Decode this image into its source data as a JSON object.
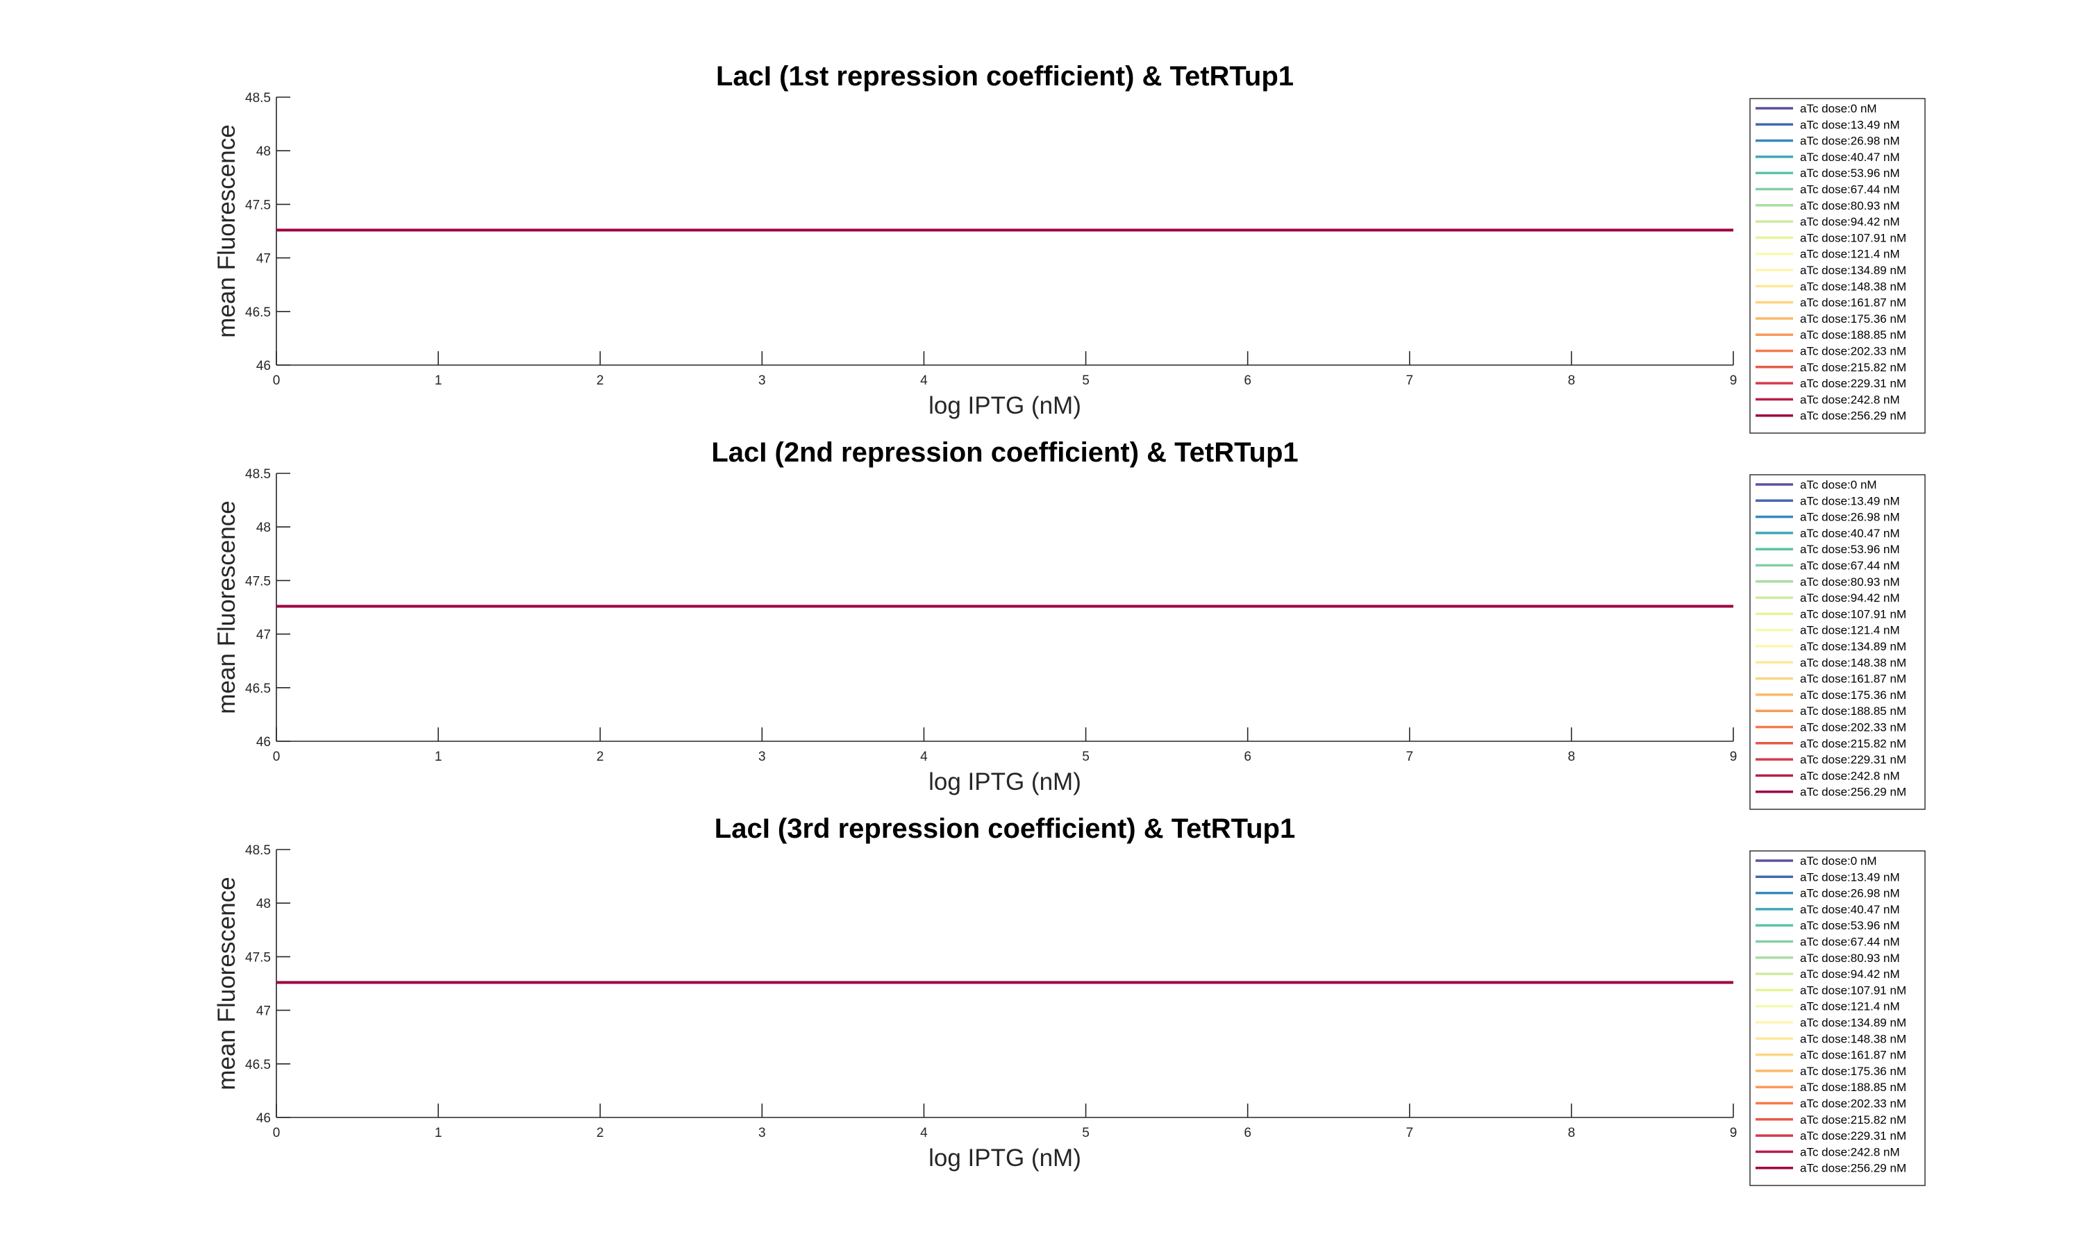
{
  "chart_data": [
    {
      "type": "line",
      "title": "LacI (1st repression coefficient) & TetRTup1",
      "xlabel": "log IPTG (nM)",
      "ylabel": "mean Fluorescence",
      "xlim": [
        0,
        9
      ],
      "ylim": [
        46,
        48.5
      ],
      "xticks": [
        "0",
        "1",
        "2",
        "3",
        "4",
        "5",
        "6",
        "7",
        "8",
        "9"
      ],
      "yticks": [
        "46",
        "46.5",
        "47",
        "47.5",
        "48",
        "48.5"
      ],
      "grid": false,
      "legend_position": "outside-right",
      "x": [
        0,
        9
      ],
      "series": [
        {
          "name": "aTc dose:0 nM",
          "values": [
            47.26,
            47.26
          ]
        },
        {
          "name": "aTc dose:13.49 nM",
          "values": [
            47.26,
            47.26
          ]
        },
        {
          "name": "aTc dose:26.98 nM",
          "values": [
            47.26,
            47.26
          ]
        },
        {
          "name": "aTc dose:40.47 nM",
          "values": [
            47.26,
            47.26
          ]
        },
        {
          "name": "aTc dose:53.96 nM",
          "values": [
            47.26,
            47.26
          ]
        },
        {
          "name": "aTc dose:67.44 nM",
          "values": [
            47.26,
            47.26
          ]
        },
        {
          "name": "aTc dose:80.93 nM",
          "values": [
            47.26,
            47.26
          ]
        },
        {
          "name": "aTc dose:94.42 nM",
          "values": [
            47.26,
            47.26
          ]
        },
        {
          "name": "aTc dose:107.91 nM",
          "values": [
            47.26,
            47.26
          ]
        },
        {
          "name": "aTc dose:121.4 nM",
          "values": [
            47.26,
            47.26
          ]
        },
        {
          "name": "aTc dose:134.89 nM",
          "values": [
            47.26,
            47.26
          ]
        },
        {
          "name": "aTc dose:148.38 nM",
          "values": [
            47.26,
            47.26
          ]
        },
        {
          "name": "aTc dose:161.87 nM",
          "values": [
            47.26,
            47.26
          ]
        },
        {
          "name": "aTc dose:175.36 nM",
          "values": [
            47.26,
            47.26
          ]
        },
        {
          "name": "aTc dose:188.85 nM",
          "values": [
            47.26,
            47.26
          ]
        },
        {
          "name": "aTc dose:202.33 nM",
          "values": [
            47.26,
            47.26
          ]
        },
        {
          "name": "aTc dose:215.82 nM",
          "values": [
            47.26,
            47.26
          ]
        },
        {
          "name": "aTc dose:229.31 nM",
          "values": [
            47.26,
            47.26
          ]
        },
        {
          "name": "aTc dose:242.8 nM",
          "values": [
            47.26,
            47.26
          ]
        },
        {
          "name": "aTc dose:256.29 nM",
          "values": [
            47.26,
            47.26
          ]
        }
      ]
    },
    {
      "type": "line",
      "title": "LacI (2nd repression coefficient) & TetRTup1",
      "xlabel": "log IPTG (nM)",
      "ylabel": "mean Fluorescence",
      "xlim": [
        0,
        9
      ],
      "ylim": [
        46,
        48.5
      ],
      "xticks": [
        "0",
        "1",
        "2",
        "3",
        "4",
        "5",
        "6",
        "7",
        "8",
        "9"
      ],
      "yticks": [
        "46",
        "46.5",
        "47",
        "47.5",
        "48",
        "48.5"
      ],
      "grid": false,
      "legend_position": "outside-right",
      "x": [
        0,
        9
      ],
      "series": [
        {
          "name": "aTc dose:0 nM",
          "values": [
            47.26,
            47.26
          ]
        },
        {
          "name": "aTc dose:13.49 nM",
          "values": [
            47.26,
            47.26
          ]
        },
        {
          "name": "aTc dose:26.98 nM",
          "values": [
            47.26,
            47.26
          ]
        },
        {
          "name": "aTc dose:40.47 nM",
          "values": [
            47.26,
            47.26
          ]
        },
        {
          "name": "aTc dose:53.96 nM",
          "values": [
            47.26,
            47.26
          ]
        },
        {
          "name": "aTc dose:67.44 nM",
          "values": [
            47.26,
            47.26
          ]
        },
        {
          "name": "aTc dose:80.93 nM",
          "values": [
            47.26,
            47.26
          ]
        },
        {
          "name": "aTc dose:94.42 nM",
          "values": [
            47.26,
            47.26
          ]
        },
        {
          "name": "aTc dose:107.91 nM",
          "values": [
            47.26,
            47.26
          ]
        },
        {
          "name": "aTc dose:121.4 nM",
          "values": [
            47.26,
            47.26
          ]
        },
        {
          "name": "aTc dose:134.89 nM",
          "values": [
            47.26,
            47.26
          ]
        },
        {
          "name": "aTc dose:148.38 nM",
          "values": [
            47.26,
            47.26
          ]
        },
        {
          "name": "aTc dose:161.87 nM",
          "values": [
            47.26,
            47.26
          ]
        },
        {
          "name": "aTc dose:175.36 nM",
          "values": [
            47.26,
            47.26
          ]
        },
        {
          "name": "aTc dose:188.85 nM",
          "values": [
            47.26,
            47.26
          ]
        },
        {
          "name": "aTc dose:202.33 nM",
          "values": [
            47.26,
            47.26
          ]
        },
        {
          "name": "aTc dose:215.82 nM",
          "values": [
            47.26,
            47.26
          ]
        },
        {
          "name": "aTc dose:229.31 nM",
          "values": [
            47.26,
            47.26
          ]
        },
        {
          "name": "aTc dose:242.8 nM",
          "values": [
            47.26,
            47.26
          ]
        },
        {
          "name": "aTc dose:256.29 nM",
          "values": [
            47.26,
            47.26
          ]
        }
      ]
    },
    {
      "type": "line",
      "title": "LacI (3rd repression coefficient) & TetRTup1",
      "xlabel": "log IPTG (nM)",
      "ylabel": "mean Fluorescence",
      "xlim": [
        0,
        9
      ],
      "ylim": [
        46,
        48.5
      ],
      "xticks": [
        "0",
        "1",
        "2",
        "3",
        "4",
        "5",
        "6",
        "7",
        "8",
        "9"
      ],
      "yticks": [
        "46",
        "46.5",
        "47",
        "47.5",
        "48",
        "48.5"
      ],
      "grid": false,
      "legend_position": "outside-right",
      "x": [
        0,
        9
      ],
      "series": [
        {
          "name": "aTc dose:0 nM",
          "values": [
            47.26,
            47.26
          ]
        },
        {
          "name": "aTc dose:13.49 nM",
          "values": [
            47.26,
            47.26
          ]
        },
        {
          "name": "aTc dose:26.98 nM",
          "values": [
            47.26,
            47.26
          ]
        },
        {
          "name": "aTc dose:40.47 nM",
          "values": [
            47.26,
            47.26
          ]
        },
        {
          "name": "aTc dose:53.96 nM",
          "values": [
            47.26,
            47.26
          ]
        },
        {
          "name": "aTc dose:67.44 nM",
          "values": [
            47.26,
            47.26
          ]
        },
        {
          "name": "aTc dose:80.93 nM",
          "values": [
            47.26,
            47.26
          ]
        },
        {
          "name": "aTc dose:94.42 nM",
          "values": [
            47.26,
            47.26
          ]
        },
        {
          "name": "aTc dose:107.91 nM",
          "values": [
            47.26,
            47.26
          ]
        },
        {
          "name": "aTc dose:121.4 nM",
          "values": [
            47.26,
            47.26
          ]
        },
        {
          "name": "aTc dose:134.89 nM",
          "values": [
            47.26,
            47.26
          ]
        },
        {
          "name": "aTc dose:148.38 nM",
          "values": [
            47.26,
            47.26
          ]
        },
        {
          "name": "aTc dose:161.87 nM",
          "values": [
            47.26,
            47.26
          ]
        },
        {
          "name": "aTc dose:175.36 nM",
          "values": [
            47.26,
            47.26
          ]
        },
        {
          "name": "aTc dose:188.85 nM",
          "values": [
            47.26,
            47.26
          ]
        },
        {
          "name": "aTc dose:202.33 nM",
          "values": [
            47.26,
            47.26
          ]
        },
        {
          "name": "aTc dose:215.82 nM",
          "values": [
            47.26,
            47.26
          ]
        },
        {
          "name": "aTc dose:229.31 nM",
          "values": [
            47.26,
            47.26
          ]
        },
        {
          "name": "aTc dose:242.8 nM",
          "values": [
            47.26,
            47.26
          ]
        },
        {
          "name": "aTc dose:256.29 nM",
          "values": [
            47.26,
            47.26
          ]
        }
      ]
    }
  ],
  "series_colors": [
    "#5e4fa2",
    "#4467b0",
    "#3489bd",
    "#3fa7b6",
    "#5cc2a6",
    "#83cfa4",
    "#a9dda2",
    "#cdeb9d",
    "#e6f598",
    "#f5fbaf",
    "#fff5b0",
    "#fee899",
    "#fed481",
    "#fdb869",
    "#fa9a59",
    "#f57a4b",
    "#e65a47",
    "#d33c4e",
    "#b91e4a",
    "#9e0142"
  ]
}
